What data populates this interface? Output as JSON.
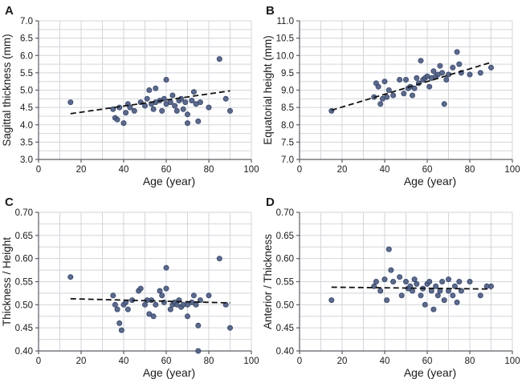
{
  "figure": {
    "background": "#ffffff",
    "point_color": "#4e5d82",
    "point_edge_color": "#36456a",
    "grid_color": "#d2d5da",
    "axis_color": "#5a5e64",
    "text_color": "#1a1a1a",
    "trend_color": "#111111"
  },
  "chart_data": [
    {
      "panel_label": "A",
      "type": "scatter",
      "xlabel": "Age (year)",
      "ylabel": "Sagittal thickness (mm)",
      "xlim": [
        0,
        100
      ],
      "ylim": [
        3.0,
        7.0
      ],
      "xticks": [
        0,
        20,
        40,
        60,
        80,
        100
      ],
      "yticks": [
        3.0,
        3.5,
        4.0,
        4.5,
        5.0,
        5.5,
        6.0,
        6.5,
        7.0
      ],
      "y_decimals": 1,
      "x_grid_step": 10,
      "y_grid_step": 0.25,
      "points": [
        [
          15,
          4.65
        ],
        [
          35,
          4.45
        ],
        [
          36,
          4.2
        ],
        [
          37,
          4.15
        ],
        [
          38,
          4.5
        ],
        [
          40,
          4.05
        ],
        [
          41,
          4.35
        ],
        [
          42,
          4.6
        ],
        [
          43,
          4.5
        ],
        [
          45,
          4.4
        ],
        [
          48,
          4.65
        ],
        [
          50,
          4.55
        ],
        [
          51,
          4.75
        ],
        [
          52,
          5.0
        ],
        [
          53,
          4.6
        ],
        [
          54,
          4.45
        ],
        [
          55,
          4.65
        ],
        [
          55,
          5.05
        ],
        [
          57,
          4.7
        ],
        [
          58,
          4.4
        ],
        [
          59,
          4.75
        ],
        [
          60,
          5.3
        ],
        [
          60,
          4.6
        ],
        [
          62,
          4.65
        ],
        [
          63,
          4.85
        ],
        [
          64,
          4.55
        ],
        [
          65,
          4.4
        ],
        [
          66,
          4.7
        ],
        [
          67,
          4.75
        ],
        [
          68,
          4.45
        ],
        [
          69,
          4.65
        ],
        [
          70,
          4.3
        ],
        [
          70,
          4.05
        ],
        [
          72,
          4.7
        ],
        [
          73,
          4.95
        ],
        [
          74,
          4.6
        ],
        [
          75,
          4.1
        ],
        [
          76,
          4.65
        ],
        [
          80,
          4.5
        ],
        [
          85,
          5.9
        ],
        [
          88,
          4.75
        ],
        [
          90,
          4.4
        ]
      ],
      "trend": {
        "x": [
          15,
          90
        ],
        "y": [
          4.32,
          4.98
        ]
      }
    },
    {
      "panel_label": "B",
      "type": "scatter",
      "xlabel": "Age (year)",
      "ylabel": "Equatorial height (mm)",
      "xlim": [
        0,
        100
      ],
      "ylim": [
        7.0,
        11.0
      ],
      "xticks": [
        0,
        20,
        40,
        60,
        80,
        100
      ],
      "yticks": [
        7.0,
        7.5,
        8.0,
        8.5,
        9.0,
        9.5,
        10.0,
        10.5,
        11.0
      ],
      "y_decimals": 1,
      "x_grid_step": 10,
      "y_grid_step": 0.25,
      "points": [
        [
          15,
          8.4
        ],
        [
          35,
          8.8
        ],
        [
          36,
          9.2
        ],
        [
          37,
          9.1
        ],
        [
          38,
          8.6
        ],
        [
          39,
          8.75
        ],
        [
          40,
          9.25
        ],
        [
          41,
          8.8
        ],
        [
          42,
          9.0
        ],
        [
          44,
          8.85
        ],
        [
          47,
          9.3
        ],
        [
          49,
          8.9
        ],
        [
          50,
          9.3
        ],
        [
          51,
          9.05
        ],
        [
          52,
          9.1
        ],
        [
          53,
          8.85
        ],
        [
          54,
          9.05
        ],
        [
          55,
          9.35
        ],
        [
          56,
          9.2
        ],
        [
          57,
          9.85
        ],
        [
          58,
          9.3
        ],
        [
          59,
          9.35
        ],
        [
          60,
          9.4
        ],
        [
          61,
          9.1
        ],
        [
          62,
          9.35
        ],
        [
          63,
          9.55
        ],
        [
          64,
          9.4
        ],
        [
          65,
          9.45
        ],
        [
          66,
          9.7
        ],
        [
          67,
          9.5
        ],
        [
          68,
          8.6
        ],
        [
          69,
          9.3
        ],
        [
          70,
          9.45
        ],
        [
          72,
          9.65
        ],
        [
          74,
          10.1
        ],
        [
          75,
          9.75
        ],
        [
          76,
          9.5
        ],
        [
          80,
          9.45
        ],
        [
          85,
          9.5
        ],
        [
          90,
          9.65
        ]
      ],
      "trend": {
        "x": [
          15,
          90
        ],
        "y": [
          8.42,
          9.8
        ]
      }
    },
    {
      "panel_label": "C",
      "type": "scatter",
      "xlabel": "Age (year)",
      "ylabel": "Thickness / Height",
      "xlim": [
        0,
        100
      ],
      "ylim": [
        0.4,
        0.7
      ],
      "xticks": [
        0,
        20,
        40,
        60,
        80,
        100
      ],
      "yticks": [
        0.4,
        0.45,
        0.5,
        0.55,
        0.6,
        0.65,
        0.7
      ],
      "y_decimals": 2,
      "x_grid_step": 10,
      "y_grid_step": 0.025,
      "points": [
        [
          15,
          0.56
        ],
        [
          35,
          0.52
        ],
        [
          36,
          0.5
        ],
        [
          37,
          0.49
        ],
        [
          38,
          0.46
        ],
        [
          39,
          0.445
        ],
        [
          40,
          0.5
        ],
        [
          41,
          0.505
        ],
        [
          42,
          0.49
        ],
        [
          44,
          0.51
        ],
        [
          47,
          0.53
        ],
        [
          48,
          0.535
        ],
        [
          50,
          0.5
        ],
        [
          51,
          0.51
        ],
        [
          52,
          0.48
        ],
        [
          53,
          0.51
        ],
        [
          54,
          0.475
        ],
        [
          55,
          0.5
        ],
        [
          57,
          0.53
        ],
        [
          58,
          0.52
        ],
        [
          59,
          0.505
        ],
        [
          60,
          0.535
        ],
        [
          60,
          0.58
        ],
        [
          62,
          0.49
        ],
        [
          63,
          0.5
        ],
        [
          64,
          0.505
        ],
        [
          65,
          0.5
        ],
        [
          66,
          0.51
        ],
        [
          67,
          0.495
        ],
        [
          68,
          0.5
        ],
        [
          70,
          0.475
        ],
        [
          70,
          0.5
        ],
        [
          72,
          0.505
        ],
        [
          73,
          0.52
        ],
        [
          74,
          0.5
        ],
        [
          75,
          0.4
        ],
        [
          75,
          0.455
        ],
        [
          76,
          0.51
        ],
        [
          80,
          0.52
        ],
        [
          85,
          0.6
        ],
        [
          88,
          0.5
        ],
        [
          90,
          0.45
        ]
      ],
      "trend": {
        "x": [
          15,
          90
        ],
        "y": [
          0.513,
          0.504
        ]
      }
    },
    {
      "panel_label": "D",
      "type": "scatter",
      "xlabel": "Age (year)",
      "ylabel": "Anterior / Thickness",
      "xlim": [
        0,
        100
      ],
      "ylim": [
        0.4,
        0.7
      ],
      "xticks": [
        0,
        20,
        40,
        60,
        80,
        100
      ],
      "yticks": [
        0.4,
        0.45,
        0.5,
        0.55,
        0.6,
        0.65,
        0.7
      ],
      "y_decimals": 2,
      "x_grid_step": 10,
      "y_grid_step": 0.025,
      "points": [
        [
          15,
          0.51
        ],
        [
          35,
          0.54
        ],
        [
          36,
          0.55
        ],
        [
          38,
          0.53
        ],
        [
          40,
          0.555
        ],
        [
          41,
          0.51
        ],
        [
          42,
          0.62
        ],
        [
          43,
          0.575
        ],
        [
          44,
          0.55
        ],
        [
          47,
          0.56
        ],
        [
          48,
          0.52
        ],
        [
          50,
          0.55
        ],
        [
          51,
          0.535
        ],
        [
          52,
          0.54
        ],
        [
          53,
          0.53
        ],
        [
          54,
          0.555
        ],
        [
          55,
          0.545
        ],
        [
          57,
          0.52
        ],
        [
          58,
          0.535
        ],
        [
          59,
          0.5
        ],
        [
          60,
          0.545
        ],
        [
          61,
          0.55
        ],
        [
          62,
          0.53
        ],
        [
          63,
          0.49
        ],
        [
          64,
          0.54
        ],
        [
          65,
          0.52
        ],
        [
          66,
          0.53
        ],
        [
          67,
          0.55
        ],
        [
          68,
          0.51
        ],
        [
          70,
          0.53
        ],
        [
          70,
          0.555
        ],
        [
          72,
          0.52
        ],
        [
          73,
          0.54
        ],
        [
          74,
          0.505
        ],
        [
          75,
          0.55
        ],
        [
          76,
          0.53
        ],
        [
          80,
          0.55
        ],
        [
          85,
          0.52
        ],
        [
          88,
          0.54
        ],
        [
          90,
          0.54
        ]
      ],
      "trend": {
        "x": [
          15,
          90
        ],
        "y": [
          0.538,
          0.534
        ]
      }
    }
  ]
}
